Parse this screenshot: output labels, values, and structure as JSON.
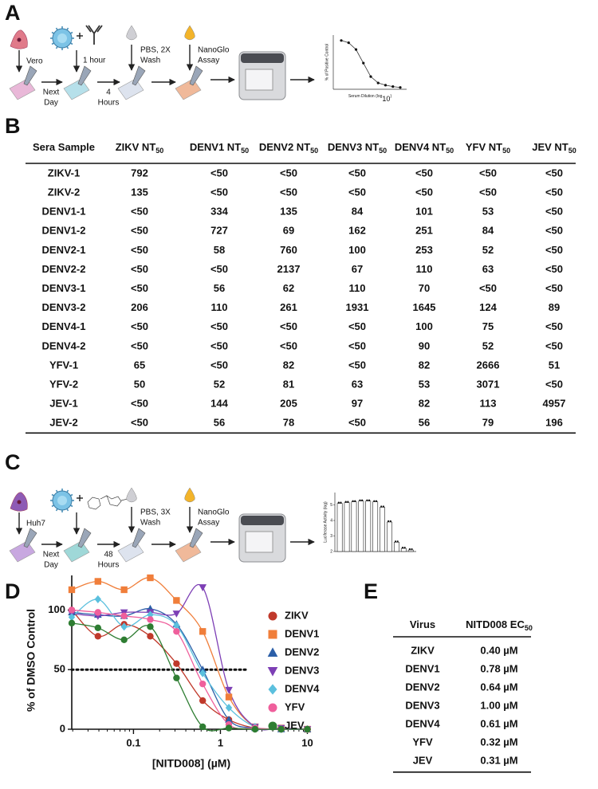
{
  "panel_a": {
    "label": "A",
    "cell": "Vero",
    "treatment": [
      "1 hour"
    ],
    "incubation1": [
      "Next",
      "Day"
    ],
    "incubation2": [
      "4",
      "Hours"
    ],
    "wash": [
      "PBS, 2X",
      "Wash"
    ],
    "assay": [
      "NanoGlo",
      "Assay"
    ],
    "inset": {
      "ylabel": "% of Positive Control",
      "xlabel": {
        "text": "Serum Dilution (log",
        "sub": "10",
        "after": ")"
      },
      "categories": [
        null,
        null,
        null,
        null,
        null,
        null,
        null,
        null,
        null
      ],
      "values": [
        108,
        103,
        88,
        58,
        28,
        14,
        9,
        6,
        4
      ],
      "ylim": [
        0,
        120
      ]
    }
  },
  "panel_b": {
    "label": "B",
    "columns": [
      {
        "text": "Sera Sample"
      },
      {
        "text": "ZIKV NT",
        "sub": "50"
      },
      {
        "text": "DENV1 NT",
        "sub": "50"
      },
      {
        "text": "DENV2 NT",
        "sub": "50"
      },
      {
        "text": "DENV3 NT",
        "sub": "50"
      },
      {
        "text": "DENV4 NT",
        "sub": "50"
      },
      {
        "text": "YFV NT",
        "sub": "50"
      },
      {
        "text": "JEV NT",
        "sub": "50"
      }
    ],
    "rows": [
      [
        "ZIKV-1",
        792,
        "<50",
        "<50",
        "<50",
        "<50",
        "<50",
        "<50"
      ],
      [
        "ZIKV-2",
        135,
        "<50",
        "<50",
        "<50",
        "<50",
        "<50",
        "<50"
      ],
      [
        "DENV1-1",
        "<50",
        334,
        135,
        84,
        101,
        53,
        "<50"
      ],
      [
        "DENV1-2",
        "<50",
        727,
        69,
        162,
        251,
        84,
        "<50"
      ],
      [
        "DENV2-1",
        "<50",
        58,
        760,
        100,
        253,
        52,
        "<50"
      ],
      [
        "DENV2-2",
        "<50",
        "<50",
        2137,
        67,
        110,
        63,
        "<50"
      ],
      [
        "DENV3-1",
        "<50",
        56,
        62,
        110,
        70,
        "<50",
        "<50"
      ],
      [
        "DENV3-2",
        206,
        110,
        261,
        1931,
        1645,
        124,
        89
      ],
      [
        "DENV4-1",
        "<50",
        "<50",
        "<50",
        "<50",
        100,
        75,
        "<50"
      ],
      [
        "DENV4-2",
        "<50",
        "<50",
        "<50",
        "<50",
        90,
        52,
        "<50"
      ],
      [
        "YFV-1",
        65,
        "<50",
        82,
        "<50",
        82,
        2666,
        51
      ],
      [
        "YFV-2",
        50,
        52,
        81,
        63,
        53,
        3071,
        "<50"
      ],
      [
        "JEV-1",
        "<50",
        144,
        205,
        97,
        82,
        113,
        4957
      ],
      [
        "JEV-2",
        "<50",
        56,
        78,
        "<50",
        56,
        79,
        196
      ]
    ]
  },
  "panel_c": {
    "label": "C",
    "cell": "Huh7",
    "incubation1": [
      "Next",
      "Day"
    ],
    "incubation2": [
      "48",
      "Hours"
    ],
    "wash": [
      "PBS, 3X",
      "Wash"
    ],
    "assay": [
      "NanoGlo",
      "Assay"
    ],
    "inset": {
      "ylabel": "Luciferase Activity (log)",
      "yticks": [
        2,
        3,
        4,
        5
      ],
      "ylim": [
        2,
        5.8
      ],
      "categories": [
        null,
        null,
        null,
        null,
        null,
        null,
        null,
        null,
        null,
        null,
        null
      ],
      "values": [
        5.1,
        5.15,
        5.2,
        5.25,
        5.25,
        5.2,
        4.85,
        3.9,
        2.6,
        2.2,
        2.1
      ]
    }
  },
  "panel_d": {
    "label": "D"
  },
  "chart_data": {
    "type": "line",
    "ylabel": "% of DMSO Control",
    "xlabel": "[NITD008] (µM)",
    "xscale": "log",
    "xlim": [
      0.0195,
      11
    ],
    "xticks": [
      0.1,
      1,
      10
    ],
    "ylim": [
      0,
      129
    ],
    "yticks": [
      0,
      50,
      100
    ],
    "reference_line": 50,
    "x": [
      0.0195,
      0.039,
      0.078,
      0.156,
      0.3125,
      0.625,
      1.25,
      2.5,
      5,
      10
    ],
    "series": [
      {
        "name": "ZIKV",
        "color": "#c0392b",
        "marker": "circle",
        "values": [
          100,
          78,
          88,
          78,
          55,
          24,
          8,
          1,
          0,
          0
        ]
      },
      {
        "name": "DENV1",
        "color": "#f07e3a",
        "marker": "square",
        "values": [
          117,
          124,
          117,
          127,
          108,
          82,
          27,
          2,
          1,
          0
        ]
      },
      {
        "name": "DENV2",
        "color": "#2b5fa8",
        "marker": "triangle-up",
        "values": [
          98,
          96,
          95,
          101,
          88,
          50,
          8,
          1,
          0,
          0
        ]
      },
      {
        "name": "DENV3",
        "color": "#7d3fb5",
        "marker": "triangle-down",
        "values": [
          97,
          95,
          98,
          98,
          97,
          119,
          33,
          2,
          1,
          0
        ]
      },
      {
        "name": "DENV4",
        "color": "#5bc0de",
        "marker": "diamond",
        "values": [
          94,
          109,
          86,
          96,
          87,
          47,
          18,
          2,
          0,
          0
        ]
      },
      {
        "name": "YFV",
        "color": "#ef5f9c",
        "marker": "circle",
        "values": [
          100,
          98,
          95,
          92,
          82,
          38,
          4,
          1,
          0,
          0
        ]
      },
      {
        "name": "JEV",
        "color": "#2e7d32",
        "marker": "circle",
        "values": [
          89,
          85,
          75,
          86,
          43,
          2,
          1,
          0,
          0,
          0
        ]
      }
    ]
  },
  "panel_e": {
    "label": "E",
    "columns": [
      {
        "text": "Virus"
      },
      {
        "text": "NITD008 EC",
        "sub": "50"
      }
    ],
    "rows": [
      [
        "ZIKV",
        "0.40 µM"
      ],
      [
        "DENV1",
        "0.78 µM"
      ],
      [
        "DENV2",
        "0.64 µM"
      ],
      [
        "DENV3",
        "1.00 µM"
      ],
      [
        "DENV4",
        "0.61 µM"
      ],
      [
        "YFV",
        "0.32 µM"
      ],
      [
        "JEV",
        "0.31 µM"
      ]
    ]
  }
}
